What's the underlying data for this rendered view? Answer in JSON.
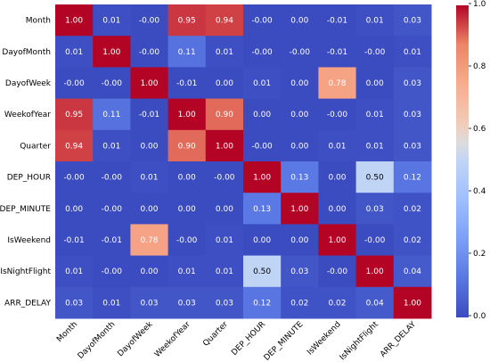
{
  "chart_data": {
    "type": "heatmap",
    "title": "",
    "xlabel": "",
    "ylabel": "",
    "labels": [
      "Month",
      "DayofMonth",
      "DayofWeek",
      "WeekofYear",
      "Quarter",
      "DEP_HOUR",
      "DEP_MINUTE",
      "IsWeekend",
      "IsNightFlight",
      "ARR_DELAY"
    ],
    "values": [
      [
        1.0,
        0.01,
        -0.0,
        0.95,
        0.94,
        -0.0,
        0.0,
        -0.01,
        0.01,
        0.03
      ],
      [
        0.01,
        1.0,
        -0.0,
        0.11,
        0.01,
        -0.0,
        -0.0,
        -0.01,
        -0.0,
        0.01
      ],
      [
        -0.0,
        -0.0,
        1.0,
        -0.01,
        0.0,
        0.01,
        0.0,
        0.78,
        0.0,
        0.03
      ],
      [
        0.95,
        0.11,
        -0.01,
        1.0,
        0.9,
        0.0,
        0.0,
        -0.0,
        0.01,
        0.03
      ],
      [
        0.94,
        0.01,
        0.0,
        0.9,
        1.0,
        -0.0,
        0.0,
        0.01,
        0.01,
        0.03
      ],
      [
        -0.0,
        -0.0,
        0.01,
        0.0,
        -0.0,
        1.0,
        0.13,
        0.0,
        0.5,
        0.12
      ],
      [
        0.0,
        -0.0,
        0.0,
        0.0,
        0.0,
        0.13,
        1.0,
        0.0,
        0.03,
        0.02
      ],
      [
        -0.01,
        -0.01,
        0.78,
        -0.0,
        0.01,
        0.0,
        0.0,
        1.0,
        -0.0,
        0.02
      ],
      [
        0.01,
        -0.0,
        0.0,
        0.01,
        0.01,
        0.5,
        0.03,
        -0.0,
        1.0,
        0.04
      ],
      [
        0.03,
        0.01,
        0.03,
        0.03,
        0.03,
        0.12,
        0.02,
        0.02,
        0.04,
        1.0
      ]
    ],
    "display_values": [
      [
        "1.00",
        "0.01",
        "-0.00",
        "0.95",
        "0.94",
        "-0.00",
        "0.00",
        "-0.01",
        "0.01",
        "0.03"
      ],
      [
        "0.01",
        "1.00",
        "-0.00",
        "0.11",
        "0.01",
        "-0.00",
        "-0.00",
        "-0.01",
        "-0.00",
        "0.01"
      ],
      [
        "-0.00",
        "-0.00",
        "1.00",
        "-0.01",
        "0.00",
        "0.01",
        "0.00",
        "0.78",
        "0.00",
        "0.03"
      ],
      [
        "0.95",
        "0.11",
        "-0.01",
        "1.00",
        "0.90",
        "0.00",
        "0.00",
        "-0.00",
        "0.01",
        "0.03"
      ],
      [
        "0.94",
        "0.01",
        "0.00",
        "0.90",
        "1.00",
        "-0.00",
        "0.00",
        "0.01",
        "0.01",
        "0.03"
      ],
      [
        "-0.00",
        "-0.00",
        "0.01",
        "0.00",
        "-0.00",
        "1.00",
        "0.13",
        "0.00",
        "0.50",
        "0.12"
      ],
      [
        "0.00",
        "-0.00",
        "0.00",
        "0.00",
        "0.00",
        "0.13",
        "1.00",
        "0.00",
        "0.03",
        "0.02"
      ],
      [
        "-0.01",
        "-0.01",
        "0.78",
        "-0.00",
        "0.01",
        "0.00",
        "0.00",
        "1.00",
        "-0.00",
        "0.02"
      ],
      [
        "0.01",
        "-0.00",
        "0.00",
        "0.01",
        "0.01",
        "0.50",
        "0.03",
        "-0.00",
        "1.00",
        "0.04"
      ],
      [
        "0.03",
        "0.01",
        "0.03",
        "0.03",
        "0.03",
        "0.12",
        "0.02",
        "0.02",
        "0.04",
        "1.00"
      ]
    ],
    "colorbar": {
      "range": [
        0.0,
        1.0
      ],
      "ticks": [
        "0.0",
        "0.2",
        "0.4",
        "0.6",
        "0.8",
        "1.0"
      ],
      "colormap": "coolwarm",
      "low_color": "#3b4cc0",
      "mid_color": "#dddddd",
      "high_color": "#b40426"
    }
  }
}
